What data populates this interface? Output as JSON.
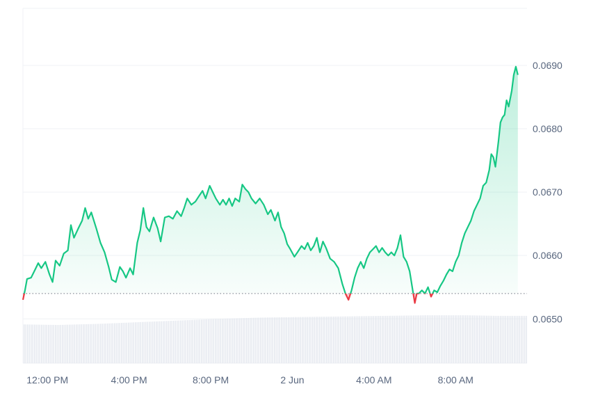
{
  "chart_data": {
    "type": "area",
    "title": "",
    "xlabel": "",
    "ylabel": "",
    "x_tick_labels": [
      "12:00 PM",
      "4:00 PM",
      "8:00 PM",
      "2 Jun",
      "4:00 AM",
      "8:00 AM"
    ],
    "y_tick_labels": [
      "0.0650",
      "0.0660",
      "0.0670",
      "0.0680",
      "0.0690"
    ],
    "y_ticks": [
      0.065,
      0.066,
      0.067,
      0.068,
      0.069
    ],
    "ylim": [
      0.0643,
      0.0699
    ],
    "baseline": 0.0654,
    "x_hours": [
      10.8,
      12.0,
      16.0,
      20.0,
      24.0,
      28.0,
      32.0,
      35.5
    ],
    "series": [
      {
        "values": [
          [
            10.8,
            0.0653
          ],
          [
            10.9,
            0.06545
          ],
          [
            11.0,
            0.06563
          ],
          [
            11.2,
            0.06565
          ],
          [
            11.4,
            0.06578
          ],
          [
            11.55,
            0.06588
          ],
          [
            11.7,
            0.0658
          ],
          [
            11.9,
            0.0659
          ],
          [
            12.1,
            0.0657
          ],
          [
            12.25,
            0.06558
          ],
          [
            12.4,
            0.06592
          ],
          [
            12.6,
            0.06584
          ],
          [
            12.8,
            0.06603
          ],
          [
            13.0,
            0.06608
          ],
          [
            13.15,
            0.06648
          ],
          [
            13.3,
            0.06628
          ],
          [
            13.5,
            0.06642
          ],
          [
            13.7,
            0.06655
          ],
          [
            13.85,
            0.06675
          ],
          [
            14.0,
            0.06658
          ],
          [
            14.15,
            0.06668
          ],
          [
            14.4,
            0.06642
          ],
          [
            14.6,
            0.0662
          ],
          [
            14.8,
            0.06605
          ],
          [
            15.0,
            0.06582
          ],
          [
            15.15,
            0.06562
          ],
          [
            15.35,
            0.06558
          ],
          [
            15.55,
            0.06582
          ],
          [
            15.7,
            0.06575
          ],
          [
            15.85,
            0.06565
          ],
          [
            16.05,
            0.0658
          ],
          [
            16.2,
            0.0657
          ],
          [
            16.4,
            0.0662
          ],
          [
            16.55,
            0.0664
          ],
          [
            16.7,
            0.06675
          ],
          [
            16.85,
            0.06645
          ],
          [
            17.0,
            0.06638
          ],
          [
            17.2,
            0.0666
          ],
          [
            17.4,
            0.06643
          ],
          [
            17.55,
            0.06622
          ],
          [
            17.75,
            0.0666
          ],
          [
            17.95,
            0.06662
          ],
          [
            18.15,
            0.06658
          ],
          [
            18.35,
            0.0667
          ],
          [
            18.55,
            0.06662
          ],
          [
            18.7,
            0.06675
          ],
          [
            18.85,
            0.0669
          ],
          [
            19.05,
            0.0668
          ],
          [
            19.25,
            0.06685
          ],
          [
            19.45,
            0.06695
          ],
          [
            19.6,
            0.06702
          ],
          [
            19.75,
            0.0669
          ],
          [
            19.95,
            0.0671
          ],
          [
            20.1,
            0.067
          ],
          [
            20.25,
            0.0669
          ],
          [
            20.45,
            0.0668
          ],
          [
            20.6,
            0.06688
          ],
          [
            20.75,
            0.0668
          ],
          [
            20.9,
            0.0669
          ],
          [
            21.05,
            0.06678
          ],
          [
            21.2,
            0.0669
          ],
          [
            21.4,
            0.06685
          ],
          [
            21.55,
            0.06712
          ],
          [
            21.7,
            0.06705
          ],
          [
            21.85,
            0.067
          ],
          [
            22.0,
            0.0669
          ],
          [
            22.2,
            0.06682
          ],
          [
            22.4,
            0.0669
          ],
          [
            22.6,
            0.0668
          ],
          [
            22.8,
            0.06665
          ],
          [
            22.95,
            0.06672
          ],
          [
            23.15,
            0.06655
          ],
          [
            23.3,
            0.06668
          ],
          [
            23.45,
            0.06645
          ],
          [
            23.6,
            0.06635
          ],
          [
            23.75,
            0.06618
          ],
          [
            23.9,
            0.0661
          ],
          [
            24.1,
            0.06598
          ],
          [
            24.25,
            0.06605
          ],
          [
            24.45,
            0.06615
          ],
          [
            24.6,
            0.0661
          ],
          [
            24.75,
            0.0662
          ],
          [
            24.9,
            0.06608
          ],
          [
            25.05,
            0.06615
          ],
          [
            25.2,
            0.06628
          ],
          [
            25.35,
            0.06605
          ],
          [
            25.5,
            0.06622
          ],
          [
            25.65,
            0.06612
          ],
          [
            25.85,
            0.06595
          ],
          [
            26.05,
            0.0659
          ],
          [
            26.25,
            0.0658
          ],
          [
            26.45,
            0.06555
          ],
          [
            26.6,
            0.0654
          ],
          [
            26.75,
            0.0653
          ],
          [
            26.9,
            0.06545
          ],
          [
            27.05,
            0.06565
          ],
          [
            27.2,
            0.0658
          ],
          [
            27.35,
            0.0659
          ],
          [
            27.5,
            0.0658
          ],
          [
            27.65,
            0.06595
          ],
          [
            27.8,
            0.06605
          ],
          [
            27.95,
            0.0661
          ],
          [
            28.1,
            0.06615
          ],
          [
            28.25,
            0.06605
          ],
          [
            28.4,
            0.06612
          ],
          [
            28.55,
            0.06605
          ],
          [
            28.7,
            0.066
          ],
          [
            28.85,
            0.06605
          ],
          [
            29.0,
            0.066
          ],
          [
            29.15,
            0.06612
          ],
          [
            29.3,
            0.06632
          ],
          [
            29.45,
            0.06598
          ],
          [
            29.6,
            0.0659
          ],
          [
            29.75,
            0.06575
          ],
          [
            29.9,
            0.06545
          ],
          [
            30.0,
            0.06525
          ],
          [
            30.1,
            0.0654
          ],
          [
            30.2,
            0.0654
          ],
          [
            30.35,
            0.06545
          ],
          [
            30.5,
            0.0654
          ],
          [
            30.65,
            0.0655
          ],
          [
            30.8,
            0.06535
          ],
          [
            30.95,
            0.06545
          ],
          [
            31.1,
            0.06542
          ],
          [
            31.25,
            0.06552
          ],
          [
            31.4,
            0.0656
          ],
          [
            31.55,
            0.0657
          ],
          [
            31.7,
            0.06578
          ],
          [
            31.85,
            0.06575
          ],
          [
            32.0,
            0.0659
          ],
          [
            32.15,
            0.066
          ],
          [
            32.3,
            0.0662
          ],
          [
            32.45,
            0.06635
          ],
          [
            32.6,
            0.06645
          ],
          [
            32.75,
            0.06655
          ],
          [
            32.9,
            0.0667
          ],
          [
            33.05,
            0.0668
          ],
          [
            33.2,
            0.0669
          ],
          [
            33.35,
            0.0671
          ],
          [
            33.5,
            0.06715
          ],
          [
            33.65,
            0.06735
          ],
          [
            33.75,
            0.0676
          ],
          [
            33.85,
            0.06755
          ],
          [
            33.95,
            0.0674
          ],
          [
            34.1,
            0.0678
          ],
          [
            34.2,
            0.0681
          ],
          [
            34.3,
            0.06818
          ],
          [
            34.4,
            0.06822
          ],
          [
            34.5,
            0.06845
          ],
          [
            34.6,
            0.06835
          ],
          [
            34.75,
            0.0686
          ],
          [
            34.85,
            0.06885
          ],
          [
            34.95,
            0.06898
          ],
          [
            35.05,
            0.06885
          ]
        ]
      }
    ],
    "volume": [
      [
        10.8,
        0.68
      ],
      [
        12.5,
        0.67
      ],
      [
        14.5,
        0.69
      ],
      [
        16.5,
        0.72
      ],
      [
        18.5,
        0.75
      ],
      [
        20.5,
        0.78
      ],
      [
        22.5,
        0.8
      ],
      [
        24.5,
        0.81
      ],
      [
        26.5,
        0.82
      ],
      [
        28.5,
        0.83
      ],
      [
        30.5,
        0.84
      ],
      [
        32.5,
        0.84
      ],
      [
        34.0,
        0.83
      ],
      [
        35.05,
        0.83
      ]
    ],
    "colors": {
      "up": "#16c784",
      "down": "#ea3943",
      "grid": "#eff2f5",
      "baseline": "#6f7783",
      "axis_text": "#58667e",
      "volume": "#e3e7ee"
    },
    "grid": true,
    "legend": "none"
  }
}
